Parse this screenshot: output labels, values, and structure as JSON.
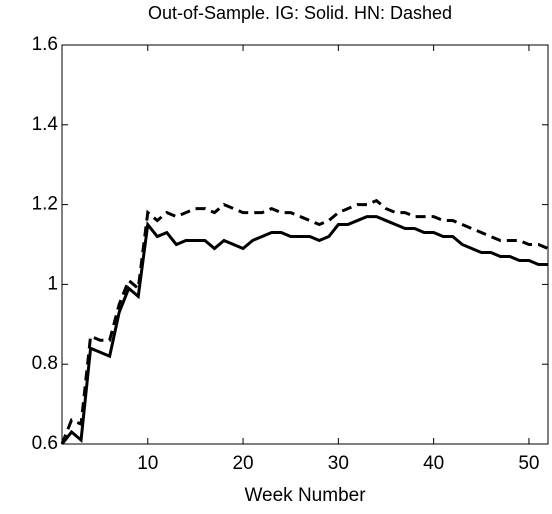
{
  "chart_data": {
    "type": "line",
    "title": "Out-of-Sample. IG: Solid. HN: Dashed",
    "xlabel": "Week Number",
    "x": [
      1,
      2,
      3,
      4,
      5,
      6,
      7,
      8,
      9,
      10,
      11,
      12,
      13,
      14,
      15,
      16,
      17,
      18,
      19,
      20,
      21,
      22,
      23,
      24,
      25,
      26,
      27,
      28,
      29,
      30,
      31,
      32,
      33,
      34,
      35,
      36,
      37,
      38,
      39,
      40,
      41,
      42,
      43,
      44,
      45,
      46,
      47,
      48,
      49,
      50,
      51,
      52
    ],
    "series": [
      {
        "color": "#000000",
        "linestyle": "solid",
        "values": [
          0.6,
          0.63,
          0.61,
          0.84,
          0.83,
          0.82,
          0.93,
          0.99,
          0.97,
          1.15,
          1.12,
          1.13,
          1.1,
          1.11,
          1.11,
          1.11,
          1.09,
          1.11,
          1.1,
          1.09,
          1.11,
          1.12,
          1.13,
          1.13,
          1.12,
          1.12,
          1.12,
          1.11,
          1.12,
          1.15,
          1.15,
          1.16,
          1.17,
          1.17,
          1.16,
          1.15,
          1.14,
          1.14,
          1.13,
          1.13,
          1.12,
          1.12,
          1.1,
          1.09,
          1.08,
          1.08,
          1.07,
          1.07,
          1.06,
          1.06,
          1.05,
          1.05
        ]
      },
      {
        "color": "#000000",
        "linestyle": "dashed",
        "values": [
          0.6,
          0.66,
          0.65,
          0.87,
          0.86,
          0.86,
          0.95,
          1.01,
          0.99,
          1.18,
          1.16,
          1.18,
          1.17,
          1.18,
          1.19,
          1.19,
          1.18,
          1.2,
          1.19,
          1.18,
          1.18,
          1.18,
          1.19,
          1.18,
          1.18,
          1.17,
          1.16,
          1.15,
          1.16,
          1.18,
          1.19,
          1.2,
          1.2,
          1.21,
          1.19,
          1.18,
          1.18,
          1.17,
          1.17,
          1.17,
          1.16,
          1.16,
          1.15,
          1.14,
          1.13,
          1.12,
          1.11,
          1.11,
          1.11,
          1.1,
          1.1,
          1.09
        ]
      }
    ],
    "xlim": [
      1,
      52
    ],
    "xticks": [
      10,
      20,
      30,
      40,
      50
    ],
    "ylim": [
      0.6,
      1.6
    ],
    "yticks": [
      0.6,
      0.8,
      1,
      1.2,
      1.4,
      1.6
    ],
    "grid": false
  }
}
